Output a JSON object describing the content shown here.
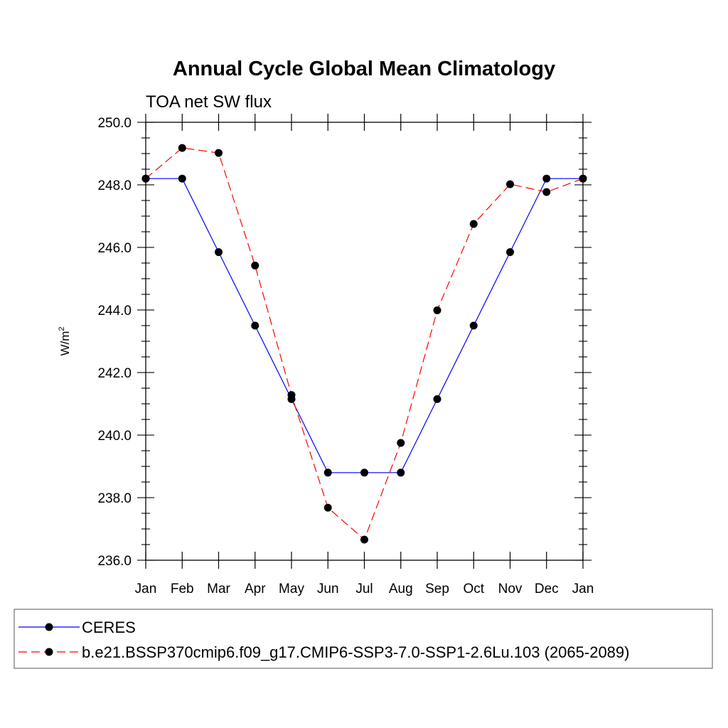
{
  "chart_data": {
    "type": "line",
    "title": "Annual Cycle Global Mean Climatology",
    "subtitle": "TOA net SW flux",
    "ylabel": "W/m",
    "ylabel_sup": "2",
    "xlabel": "",
    "categories": [
      "Jan",
      "Feb",
      "Mar",
      "Apr",
      "May",
      "Jun",
      "Jul",
      "Aug",
      "Sep",
      "Oct",
      "Nov",
      "Dec",
      "Jan"
    ],
    "ylim": [
      236.0,
      250.0
    ],
    "yticks": [
      "236.0",
      "238.0",
      "240.0",
      "242.0",
      "244.0",
      "246.0",
      "248.0",
      "250.0"
    ],
    "grid": false,
    "legend_position": "bottom",
    "series": [
      {
        "name": "CERES",
        "color": "#0000ff",
        "line_style": "solid",
        "marker": "filled-circle",
        "values": [
          248.2,
          248.2,
          245.85,
          243.5,
          241.15,
          238.8,
          238.8,
          238.8,
          241.15,
          243.5,
          245.85,
          248.2,
          248.2
        ]
      },
      {
        "name": "b.e21.BSSP370cmip6.f09_g17.CMIP6-SSP3-7.0-SSP1-2.6Lu.103 (2065-2089)",
        "color": "#ff0000",
        "line_style": "dashed",
        "marker": "filled-circle",
        "values": [
          248.2,
          249.18,
          249.02,
          245.42,
          241.28,
          237.68,
          236.66,
          239.75,
          243.99,
          246.75,
          248.02,
          247.77,
          248.2
        ]
      }
    ]
  }
}
